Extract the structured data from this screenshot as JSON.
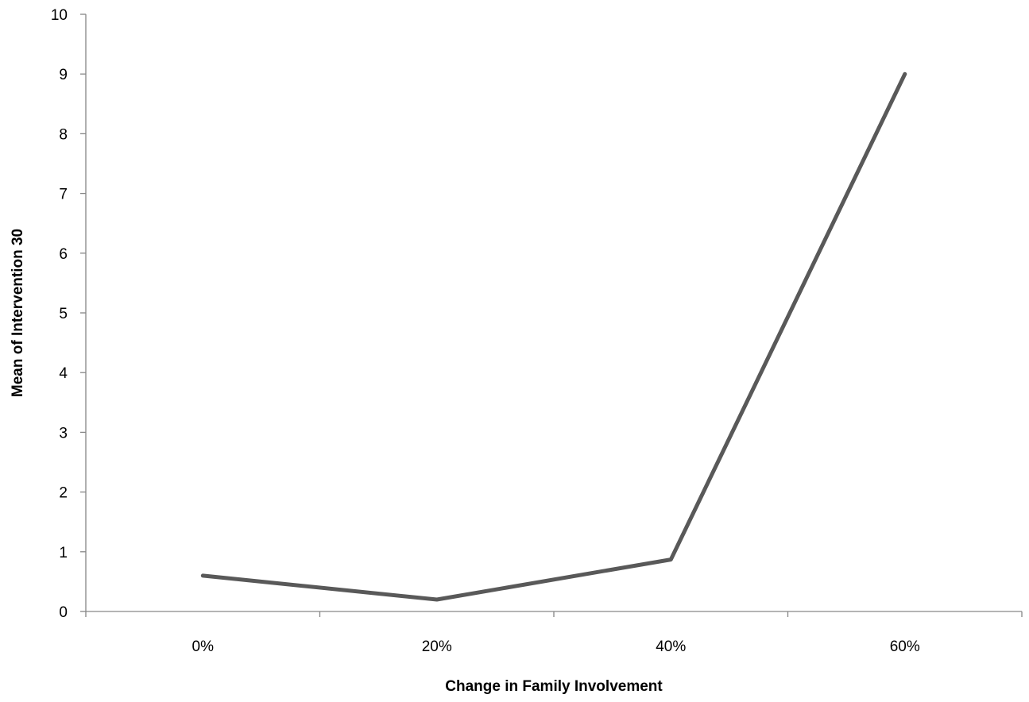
{
  "chart_data": {
    "type": "line",
    "title": "",
    "xlabel": "Change in Family Involvement",
    "ylabel": "Mean of Intervention 30",
    "categories": [
      "0%",
      "20%",
      "40%",
      "60%"
    ],
    "series": [
      {
        "values": [
          0.6,
          0.2,
          0.87,
          9.0
        ],
        "color": "#595959"
      }
    ],
    "ylim": [
      0,
      10
    ],
    "yticks": [
      "0",
      "1",
      "2",
      "3",
      "4",
      "5",
      "6",
      "7",
      "8",
      "9",
      "10"
    ],
    "grid": false,
    "legend": "none"
  }
}
